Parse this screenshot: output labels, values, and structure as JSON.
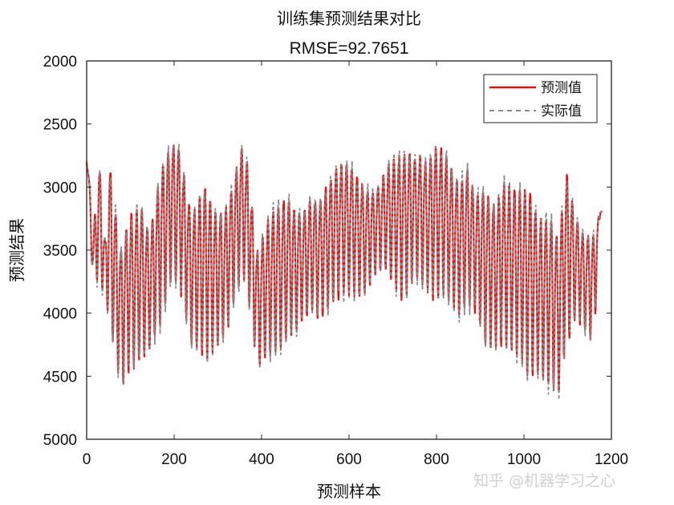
{
  "chart_data": {
    "type": "line",
    "title": "训练集预测结果对比",
    "subtitle": "RMSE=92.7651",
    "xlabel": "预测样本",
    "ylabel": "预测结果",
    "xlim": [
      0,
      1200
    ],
    "ylim": [
      2000,
      5000
    ],
    "y_reversed": true,
    "x_ticks": [
      "0",
      "200",
      "400",
      "600",
      "800",
      "1000",
      "1200"
    ],
    "y_ticks": [
      "2000",
      "2500",
      "3000",
      "3500",
      "4000",
      "4500",
      "5000"
    ],
    "grid": false,
    "legend_position": "top-right",
    "x_count": 1180,
    "oscillation": {
      "peaks": [
        [
          0,
          2650
        ],
        [
          15,
          3350
        ],
        [
          28,
          2650
        ],
        [
          43,
          3400
        ],
        [
          52,
          2650
        ],
        [
          78,
          3350
        ],
        [
          100,
          3050
        ],
        [
          125,
          3000
        ],
        [
          145,
          3250
        ],
        [
          170,
          2700
        ],
        [
          195,
          2500
        ],
        [
          212,
          2550
        ],
        [
          240,
          3100
        ],
        [
          270,
          2800
        ],
        [
          295,
          3050
        ],
        [
          318,
          3050
        ],
        [
          340,
          2750
        ],
        [
          355,
          2550
        ],
        [
          368,
          2650
        ],
        [
          390,
          3400
        ],
        [
          420,
          3050
        ],
        [
          440,
          3000
        ],
        [
          462,
          2950
        ],
        [
          480,
          3100
        ],
        [
          500,
          3050
        ],
        [
          515,
          2950
        ],
        [
          530,
          3000
        ],
        [
          550,
          2850
        ],
        [
          570,
          2700
        ],
        [
          600,
          2650
        ],
        [
          620,
          2800
        ],
        [
          640,
          2900
        ],
        [
          660,
          2950
        ],
        [
          685,
          2750
        ],
        [
          700,
          2650
        ],
        [
          720,
          2600
        ],
        [
          735,
          2550
        ],
        [
          752,
          2650
        ],
        [
          765,
          2600
        ],
        [
          780,
          2700
        ],
        [
          795,
          2500
        ],
        [
          815,
          2550
        ],
        [
          828,
          2650
        ],
        [
          850,
          2850
        ],
        [
          870,
          2700
        ],
        [
          890,
          2950
        ],
        [
          910,
          2850
        ],
        [
          932,
          3000
        ],
        [
          955,
          2800
        ],
        [
          990,
          2850
        ],
        [
          1010,
          2800
        ],
        [
          1035,
          3100
        ],
        [
          1060,
          3050
        ],
        [
          1080,
          3300
        ],
        [
          1095,
          2650
        ],
        [
          1120,
          3150
        ],
        [
          1140,
          3300
        ],
        [
          1160,
          3250
        ],
        [
          1175,
          3180
        ]
      ],
      "troughs": [
        [
          0,
          2800
        ],
        [
          15,
          3800
        ],
        [
          28,
          3750
        ],
        [
          43,
          3900
        ],
        [
          52,
          4050
        ],
        [
          78,
          4600
        ],
        [
          100,
          4450
        ],
        [
          125,
          4400
        ],
        [
          145,
          4300
        ],
        [
          170,
          4100
        ],
        [
          195,
          3750
        ],
        [
          212,
          3800
        ],
        [
          240,
          4250
        ],
        [
          270,
          4400
        ],
        [
          295,
          4300
        ],
        [
          318,
          4200
        ],
        [
          340,
          3900
        ],
        [
          355,
          3700
        ],
        [
          368,
          3850
        ],
        [
          390,
          4450
        ],
        [
          420,
          4350
        ],
        [
          440,
          4300
        ],
        [
          462,
          4200
        ],
        [
          480,
          4150
        ],
        [
          500,
          4050
        ],
        [
          515,
          4000
        ],
        [
          530,
          4050
        ],
        [
          550,
          4000
        ],
        [
          570,
          3900
        ],
        [
          600,
          3850
        ],
        [
          620,
          3900
        ],
        [
          640,
          3850
        ],
        [
          660,
          3700
        ],
        [
          685,
          3650
        ],
        [
          700,
          3800
        ],
        [
          720,
          3900
        ],
        [
          735,
          3850
        ],
        [
          752,
          3750
        ],
        [
          765,
          3750
        ],
        [
          780,
          3850
        ],
        [
          795,
          3900
        ],
        [
          815,
          3850
        ],
        [
          828,
          3900
        ],
        [
          850,
          4050
        ],
        [
          870,
          3950
        ],
        [
          890,
          4000
        ],
        [
          910,
          4250
        ],
        [
          932,
          4300
        ],
        [
          955,
          4250
        ],
        [
          990,
          4400
        ],
        [
          1010,
          4550
        ],
        [
          1035,
          4500
        ],
        [
          1060,
          4600
        ],
        [
          1080,
          4650
        ],
        [
          1095,
          4300
        ],
        [
          1120,
          4050
        ],
        [
          1140,
          4150
        ],
        [
          1160,
          4250
        ],
        [
          1175,
          3200
        ]
      ],
      "period": 12
    },
    "series": [
      {
        "name": "预测值",
        "color": "#e8100f",
        "style": "solid"
      },
      {
        "name": "实际值",
        "color": "#8a8a8a",
        "style": "dashed"
      }
    ]
  },
  "watermark": "知乎 @机器学习之心"
}
